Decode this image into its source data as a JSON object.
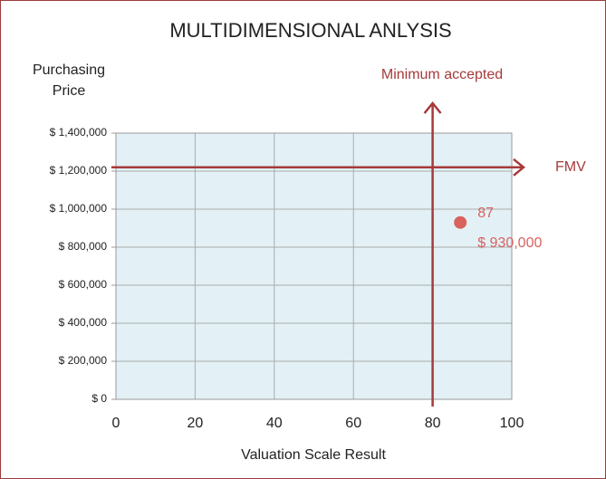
{
  "chart_data": {
    "type": "scatter",
    "title": "MULTIDIMENSIONAL ANLYSIS",
    "ylabel": [
      "Purchasing",
      "Price"
    ],
    "xlabel": "Valuation Scale Result",
    "xlim": [
      0,
      100
    ],
    "xticks": [
      0,
      20,
      40,
      60,
      80,
      100
    ],
    "ylim": [
      0,
      1400000
    ],
    "yticks": [
      {
        "value": 0,
        "label": "$ 0"
      },
      {
        "value": 200000,
        "label": "$ 200,000"
      },
      {
        "value": 400000,
        "label": "$ 400,000"
      },
      {
        "value": 600000,
        "label": "$ 600,000"
      },
      {
        "value": 800000,
        "label": "$ 800,000"
      },
      {
        "value": 1000000,
        "label": "$ 1,000,000"
      },
      {
        "value": 1200000,
        "label": "$ 1,200,000"
      },
      {
        "value": 1400000,
        "label": "$ 1,400,000"
      }
    ],
    "grid": true,
    "series": [
      {
        "color": "#d9625e",
        "x": [
          87
        ],
        "values": [
          930000
        ],
        "x_labels": [
          "87"
        ],
        "value_labels": [
          "$ 930,000"
        ]
      }
    ],
    "hline": {
      "value": 1220000,
      "label": "FMV",
      "color": "#a63a3a"
    },
    "vline": {
      "value": 80,
      "label": "Minimum accepted",
      "color": "#a63a3a"
    }
  }
}
